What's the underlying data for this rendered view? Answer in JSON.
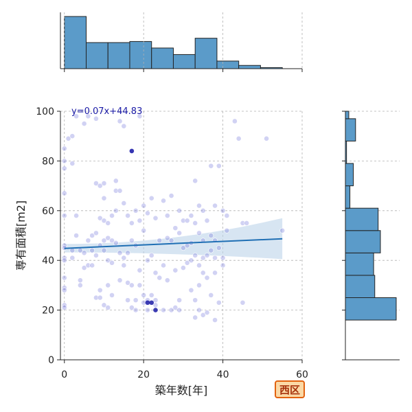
{
  "badge_text": "西区",
  "chart_data": {
    "type": "scatter",
    "title": "",
    "xlabel": "築年数[年]",
    "ylabel": "専有面積[m2]",
    "xlim": [
      -1,
      60
    ],
    "ylim": [
      0,
      100
    ],
    "xticks": [
      "0",
      "20",
      "40",
      "60"
    ],
    "yticks": [
      "0",
      "20",
      "40",
      "60",
      "80",
      "100"
    ],
    "grid": true,
    "regression": {
      "label": "y=0.07x+44.83",
      "slope": 0.07,
      "intercept": 44.83,
      "x_range": [
        0,
        55
      ],
      "ci_low_start": 43.2,
      "ci_high_start": 46.6,
      "ci_low_end": 40.5,
      "ci_high_end": 57.0
    },
    "points": [
      [
        0,
        85
      ],
      [
        0,
        80
      ],
      [
        0,
        77
      ],
      [
        0,
        67
      ],
      [
        0,
        58
      ],
      [
        0,
        46
      ],
      [
        0,
        45
      ],
      [
        0,
        41
      ],
      [
        0,
        40
      ],
      [
        0,
        33
      ],
      [
        0,
        29
      ],
      [
        0,
        28
      ],
      [
        0,
        22
      ],
      [
        0,
        21
      ],
      [
        1,
        89
      ],
      [
        2,
        90
      ],
      [
        2,
        79
      ],
      [
        2,
        44
      ],
      [
        2,
        41
      ],
      [
        3,
        98
      ],
      [
        3,
        58
      ],
      [
        3,
        50
      ],
      [
        4,
        44
      ],
      [
        4,
        32
      ],
      [
        4,
        30
      ],
      [
        5,
        95
      ],
      [
        5,
        43
      ],
      [
        5,
        37
      ],
      [
        6,
        98
      ],
      [
        6,
        48
      ],
      [
        6,
        38
      ],
      [
        7,
        50
      ],
      [
        7,
        44
      ],
      [
        7,
        38
      ],
      [
        8,
        97
      ],
      [
        8,
        71
      ],
      [
        8,
        51
      ],
      [
        8,
        42
      ],
      [
        8,
        25
      ],
      [
        9,
        70
      ],
      [
        9,
        57
      ],
      [
        9,
        46
      ],
      [
        9,
        28
      ],
      [
        9,
        25
      ],
      [
        10,
        71
      ],
      [
        10,
        65
      ],
      [
        10,
        56
      ],
      [
        10,
        48
      ],
      [
        10,
        44
      ],
      [
        10,
        22
      ],
      [
        11,
        55
      ],
      [
        11,
        49
      ],
      [
        11,
        40
      ],
      [
        11,
        30
      ],
      [
        11,
        21
      ],
      [
        12,
        58
      ],
      [
        12,
        48
      ],
      [
        12,
        39
      ],
      [
        12,
        26
      ],
      [
        13,
        72
      ],
      [
        13,
        68
      ],
      [
        13,
        60
      ],
      [
        13,
        47
      ],
      [
        14,
        96
      ],
      [
        14,
        68
      ],
      [
        14,
        43
      ],
      [
        14,
        32
      ],
      [
        15,
        94
      ],
      [
        15,
        63
      ],
      [
        15,
        41
      ],
      [
        15,
        38
      ],
      [
        16,
        58
      ],
      [
        16,
        43
      ],
      [
        16,
        31
      ],
      [
        16,
        24
      ],
      [
        17,
        84
      ],
      [
        17,
        55
      ],
      [
        17,
        48
      ],
      [
        17,
        30
      ],
      [
        17,
        21
      ],
      [
        18,
        60
      ],
      [
        18,
        46
      ],
      [
        18,
        24
      ],
      [
        18,
        20
      ],
      [
        19,
        98
      ],
      [
        19,
        56
      ],
      [
        19,
        36
      ],
      [
        19,
        30
      ],
      [
        20,
        62
      ],
      [
        20,
        52
      ],
      [
        20,
        26
      ],
      [
        20,
        23
      ],
      [
        21,
        59
      ],
      [
        21,
        40
      ],
      [
        21,
        24
      ],
      [
        21,
        20
      ],
      [
        22,
        65
      ],
      [
        22,
        42
      ],
      [
        22,
        26
      ],
      [
        23,
        57
      ],
      [
        23,
        35
      ],
      [
        23,
        24
      ],
      [
        23,
        22
      ],
      [
        24,
        48
      ],
      [
        24,
        33
      ],
      [
        25,
        64
      ],
      [
        25,
        38
      ],
      [
        25,
        20
      ],
      [
        26,
        58
      ],
      [
        26,
        49
      ],
      [
        26,
        32
      ],
      [
        27,
        66
      ],
      [
        27,
        48
      ],
      [
        27,
        20
      ],
      [
        28,
        53
      ],
      [
        28,
        36
      ],
      [
        28,
        21
      ],
      [
        29,
        60
      ],
      [
        29,
        51
      ],
      [
        29,
        24
      ],
      [
        29,
        20
      ],
      [
        30,
        56
      ],
      [
        30,
        45
      ],
      [
        30,
        37
      ],
      [
        31,
        56
      ],
      [
        31,
        46
      ],
      [
        31,
        39
      ],
      [
        32,
        58
      ],
      [
        32,
        47
      ],
      [
        32,
        40
      ],
      [
        32,
        28
      ],
      [
        33,
        72
      ],
      [
        33,
        55
      ],
      [
        33,
        42
      ],
      [
        33,
        24
      ],
      [
        33,
        17
      ],
      [
        34,
        62
      ],
      [
        34,
        51
      ],
      [
        34,
        38
      ],
      [
        34,
        30
      ],
      [
        34,
        20
      ],
      [
        35,
        60
      ],
      [
        35,
        48
      ],
      [
        35,
        41
      ],
      [
        35,
        35
      ],
      [
        35,
        18
      ],
      [
        36,
        56
      ],
      [
        36,
        42
      ],
      [
        36,
        33
      ],
      [
        36,
        19
      ],
      [
        37,
        78
      ],
      [
        37,
        50
      ],
      [
        37,
        44
      ],
      [
        37,
        26
      ],
      [
        38,
        62
      ],
      [
        38,
        48
      ],
      [
        38,
        41
      ],
      [
        38,
        35
      ],
      [
        38,
        16
      ],
      [
        39,
        78
      ],
      [
        39,
        45
      ],
      [
        39,
        23
      ],
      [
        40,
        60
      ],
      [
        40,
        41
      ],
      [
        40,
        38
      ],
      [
        41,
        58
      ],
      [
        41,
        52
      ],
      [
        43,
        96
      ],
      [
        44,
        89
      ],
      [
        45,
        55
      ],
      [
        45,
        23
      ],
      [
        46,
        55
      ],
      [
        51,
        89
      ],
      [
        55,
        52
      ]
    ],
    "dark_points": [
      [
        17,
        84
      ],
      [
        22,
        23
      ],
      [
        23,
        20
      ],
      [
        21,
        23
      ]
    ],
    "top_histogram": {
      "bin_edges": [
        0,
        5.5,
        11,
        16.5,
        22,
        27.5,
        33,
        38.5,
        44,
        49.5,
        55,
        60
      ],
      "counts": [
        48,
        24,
        24,
        25,
        19,
        13,
        28,
        7,
        3,
        1,
        0
      ]
    },
    "right_histogram": {
      "bin_edges": [
        16,
        25,
        34,
        43,
        52,
        61,
        70,
        79,
        88,
        97,
        100
      ],
      "counts": [
        45,
        26,
        25,
        31,
        29,
        4,
        7,
        1,
        9,
        3
      ]
    }
  }
}
